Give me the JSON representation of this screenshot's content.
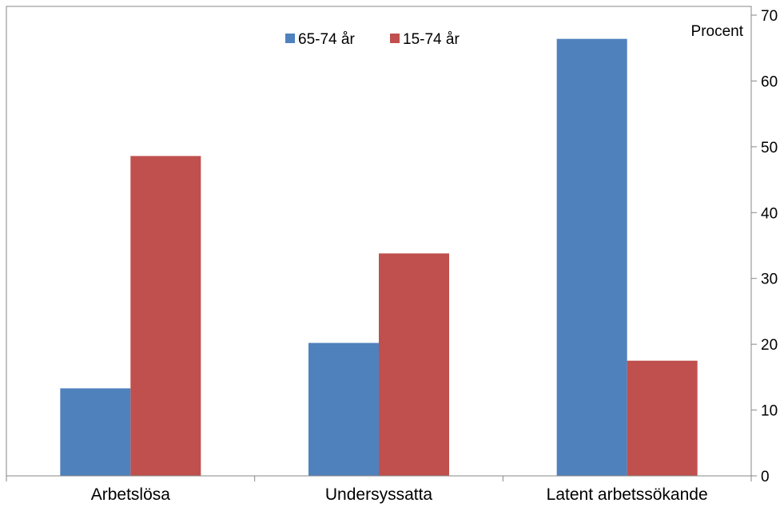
{
  "chart_data": {
    "type": "bar",
    "title": "",
    "xlabel": "",
    "ylabel": "Procent",
    "categories": [
      "Arbetslösa",
      "Undersyssatta",
      "Latent arbetssökande"
    ],
    "series": [
      {
        "name": "65-74 år",
        "values": [
          13.3,
          20.2,
          66.4
        ],
        "color": "#4F81BD"
      },
      {
        "name": "15-74 år",
        "values": [
          48.6,
          33.8,
          17.5
        ],
        "color": "#C0504D"
      }
    ],
    "yticks": [
      "0",
      "10",
      "20",
      "30",
      "40",
      "50",
      "60",
      "70"
    ],
    "ylim": [
      0,
      70
    ],
    "y_axis_side": "right",
    "grid": false,
    "legend_position": "top-center"
  }
}
